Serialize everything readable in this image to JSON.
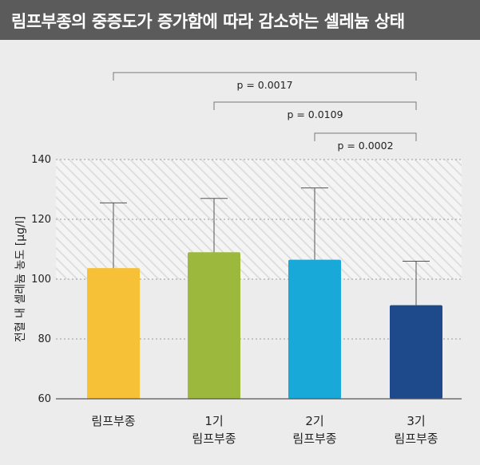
{
  "header": {
    "title": "림프부종의 중증도가 증가함에 따라 감소하는 셀레늄 상태"
  },
  "colors": {
    "header_bg": "#5b5b5b",
    "page_bg": "#ececec",
    "bar_colors": [
      "#f6c037",
      "#9cb83d",
      "#19a9d8",
      "#1e4a8c"
    ]
  },
  "chart_data": {
    "type": "bar",
    "categories": [
      [
        "림프부종"
      ],
      [
        "1기",
        "림프부종"
      ],
      [
        "2기",
        "림프부종"
      ],
      [
        "3기",
        "림프부종"
      ]
    ],
    "values": [
      103.7,
      109.0,
      106.5,
      91.3
    ],
    "error_upper": [
      125.5,
      127.0,
      130.5,
      106.0
    ],
    "ylabel": "전혈 내 셀레늄 농도 [μg/l]",
    "ylim": [
      60,
      140
    ],
    "yticks": [
      60,
      80,
      100,
      120,
      140
    ],
    "grid": true,
    "reference_band": [
      100,
      140
    ],
    "significance": [
      {
        "from": 0,
        "to": 3,
        "label": "p = 0.0017"
      },
      {
        "from": 1,
        "to": 3,
        "label": "p = 0.0109"
      },
      {
        "from": 2,
        "to": 3,
        "label": "p = 0.0002"
      }
    ]
  }
}
